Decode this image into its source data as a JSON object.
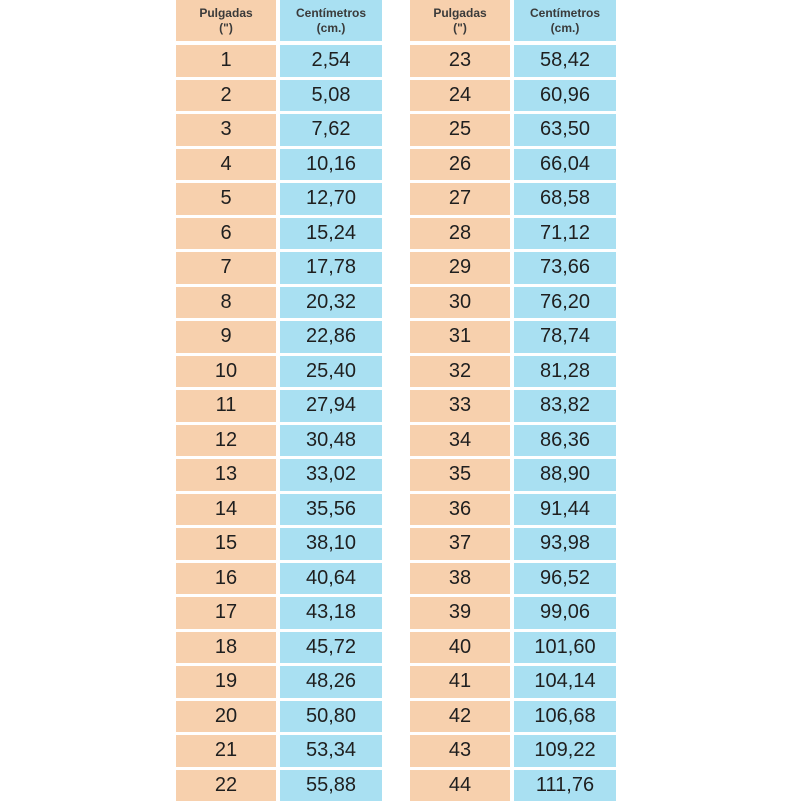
{
  "header": {
    "inches_label": "Pulgadas",
    "inches_unit": "(\")",
    "cm_label": "Centímetros",
    "cm_unit": "(cm.)"
  },
  "colors": {
    "inches_column": "#f7d0ad",
    "cm_column": "#a9e0f2"
  },
  "left_rows": [
    {
      "inches": "1",
      "cm": "2,54"
    },
    {
      "inches": "2",
      "cm": "5,08"
    },
    {
      "inches": "3",
      "cm": "7,62"
    },
    {
      "inches": "4",
      "cm": "10,16"
    },
    {
      "inches": "5",
      "cm": "12,70"
    },
    {
      "inches": "6",
      "cm": "15,24"
    },
    {
      "inches": "7",
      "cm": "17,78"
    },
    {
      "inches": "8",
      "cm": "20,32"
    },
    {
      "inches": "9",
      "cm": "22,86"
    },
    {
      "inches": "10",
      "cm": "25,40"
    },
    {
      "inches": "11",
      "cm": "27,94"
    },
    {
      "inches": "12",
      "cm": "30,48"
    },
    {
      "inches": "13",
      "cm": "33,02"
    },
    {
      "inches": "14",
      "cm": "35,56"
    },
    {
      "inches": "15",
      "cm": "38,10"
    },
    {
      "inches": "16",
      "cm": "40,64"
    },
    {
      "inches": "17",
      "cm": "43,18"
    },
    {
      "inches": "18",
      "cm": "45,72"
    },
    {
      "inches": "19",
      "cm": "48,26"
    },
    {
      "inches": "20",
      "cm": "50,80"
    },
    {
      "inches": "21",
      "cm": "53,34"
    },
    {
      "inches": "22",
      "cm": "55,88"
    }
  ],
  "right_rows": [
    {
      "inches": "23",
      "cm": "58,42"
    },
    {
      "inches": "24",
      "cm": "60,96"
    },
    {
      "inches": "25",
      "cm": "63,50"
    },
    {
      "inches": "26",
      "cm": "66,04"
    },
    {
      "inches": "27",
      "cm": "68,58"
    },
    {
      "inches": "28",
      "cm": "71,12"
    },
    {
      "inches": "29",
      "cm": "73,66"
    },
    {
      "inches": "30",
      "cm": "76,20"
    },
    {
      "inches": "31",
      "cm": "78,74"
    },
    {
      "inches": "32",
      "cm": "81,28"
    },
    {
      "inches": "33",
      "cm": "83,82"
    },
    {
      "inches": "34",
      "cm": "86,36"
    },
    {
      "inches": "35",
      "cm": "88,90"
    },
    {
      "inches": "36",
      "cm": "91,44"
    },
    {
      "inches": "37",
      "cm": "93,98"
    },
    {
      "inches": "38",
      "cm": "96,52"
    },
    {
      "inches": "39",
      "cm": "99,06"
    },
    {
      "inches": "40",
      "cm": "101,60"
    },
    {
      "inches": "41",
      "cm": "104,14"
    },
    {
      "inches": "42",
      "cm": "106,68"
    },
    {
      "inches": "43",
      "cm": "109,22"
    },
    {
      "inches": "44",
      "cm": "111,76"
    }
  ]
}
